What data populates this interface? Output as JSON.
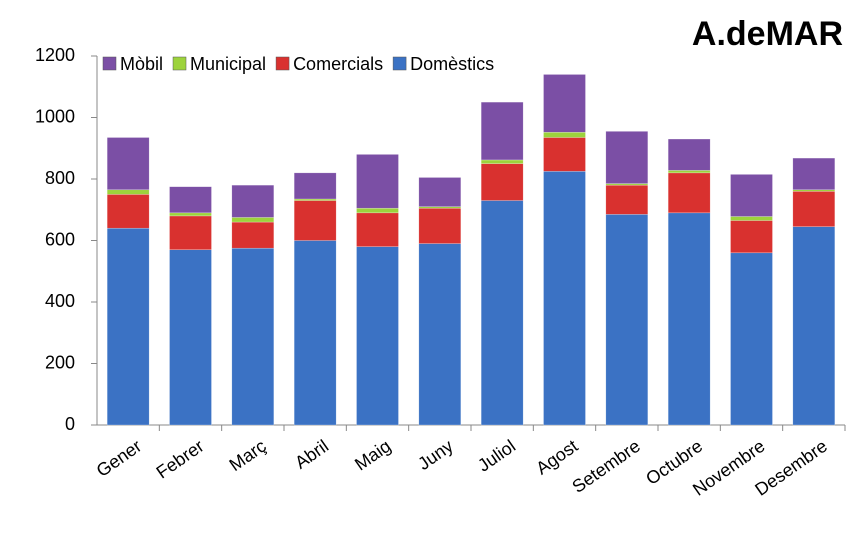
{
  "chart_data": {
    "type": "stacked_bar",
    "title": "A.deMAR",
    "categories": [
      "Gener",
      "Febrer",
      "Març",
      "Abril",
      "Maig",
      "Juny",
      "Juliol",
      "Agost",
      "Setembre",
      "Octubre",
      "Novembre",
      "Desembre"
    ],
    "series": [
      {
        "name": "Domèstics",
        "color": "#3b72c4",
        "values": [
          640,
          570,
          575,
          600,
          580,
          590,
          730,
          825,
          685,
          690,
          560,
          645
        ]
      },
      {
        "name": "Comercials",
        "color": "#d9312f",
        "values": [
          110,
          110,
          85,
          130,
          110,
          115,
          120,
          110,
          95,
          130,
          105,
          115
        ]
      },
      {
        "name": "Municipal",
        "color": "#9dd33c",
        "values": [
          15,
          10,
          15,
          5,
          15,
          5,
          12,
          17,
          5,
          8,
          13,
          5
        ]
      },
      {
        "name": "Mòbil",
        "color": "#7b4fa5",
        "values": [
          170,
          85,
          105,
          85,
          175,
          95,
          188,
          188,
          170,
          102,
          137,
          103
        ]
      }
    ],
    "ylim": [
      0,
      1200
    ],
    "yticks": [
      0,
      200,
      400,
      600,
      800,
      1000,
      1200
    ],
    "grid": false,
    "legend": "top"
  }
}
